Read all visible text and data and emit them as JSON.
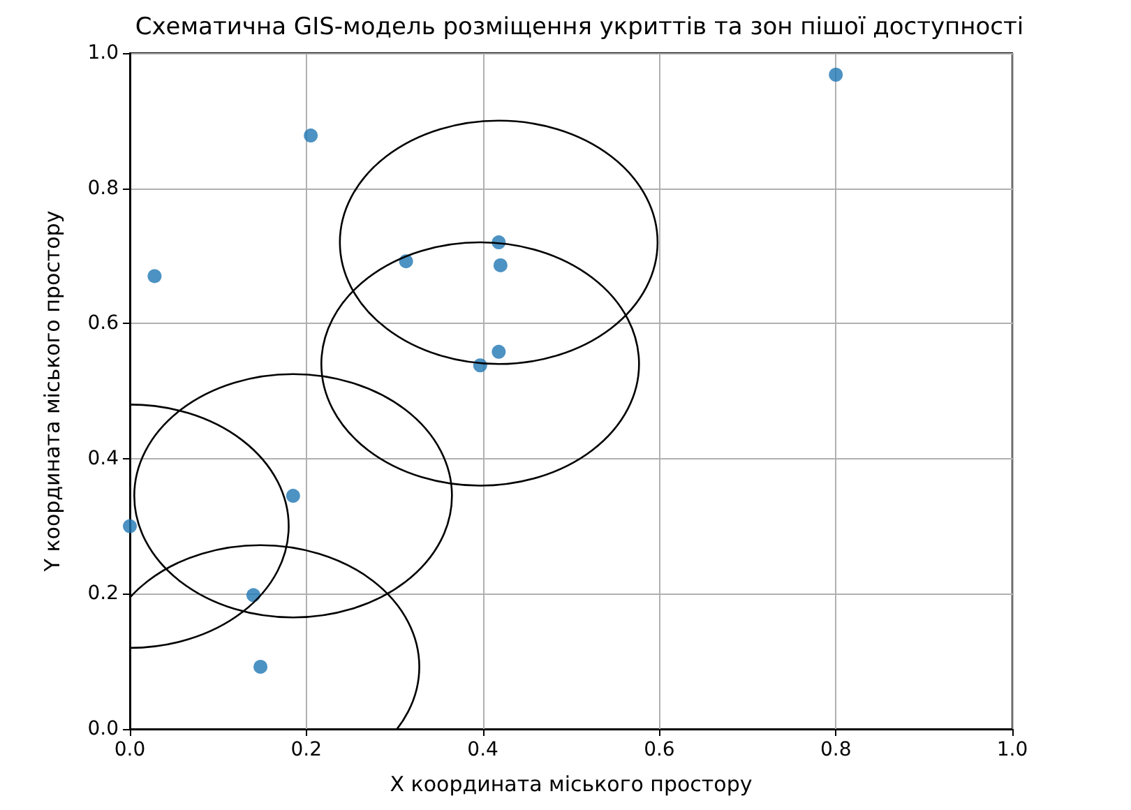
{
  "chart_data": {
    "type": "scatter",
    "title": "Схематична GIS-модель розміщення укриттів та зон пішої доступності",
    "xlabel": "X координата міського простору",
    "ylabel": "Y координата міського простору",
    "xlim": [
      0,
      1
    ],
    "ylim": [
      0,
      1
    ],
    "xticks": [
      {
        "value": 0,
        "label": "0.0"
      },
      {
        "value": 0.2,
        "label": "0.2"
      },
      {
        "value": 0.4,
        "label": "0.4"
      },
      {
        "value": 0.6,
        "label": "0.6"
      },
      {
        "value": 0.8,
        "label": "0.8"
      },
      {
        "value": 1,
        "label": "1.0"
      }
    ],
    "yticks": [
      {
        "value": 0,
        "label": "0.0"
      },
      {
        "value": 0.2,
        "label": "0.2"
      },
      {
        "value": 0.4,
        "label": "0.4"
      },
      {
        "value": 0.6,
        "label": "0.6"
      },
      {
        "value": 0.8,
        "label": "0.8"
      },
      {
        "value": 1,
        "label": "1.0"
      }
    ],
    "grid": true,
    "series": [
      {
        "type": "scatter",
        "marker": "circle",
        "color": "#1f77b4",
        "x": [
          0.0,
          0.028,
          0.205,
          0.185,
          0.14,
          0.148,
          0.313,
          0.418,
          0.42,
          0.397,
          0.418,
          0.8
        ],
        "values": [
          0.3,
          0.67,
          0.878,
          0.345,
          0.198,
          0.092,
          0.692,
          0.72,
          0.686,
          0.538,
          0.558,
          0.968
        ]
      }
    ]
  }
}
